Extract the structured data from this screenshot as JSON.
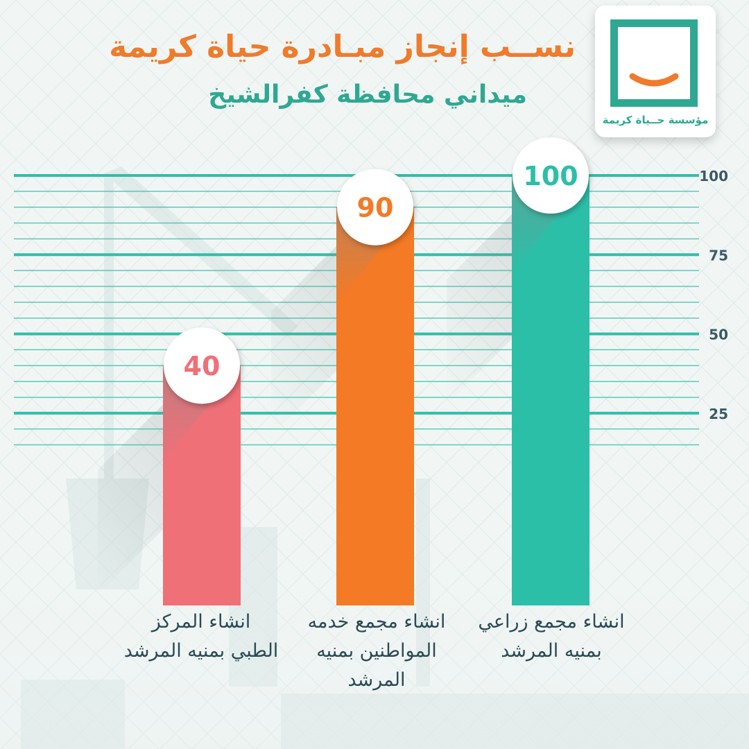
{
  "header": {
    "title": "نســب إنجاز مبـادرة حياة كريمة",
    "subtitle": "ميداني محافظة كفرالشيخ"
  },
  "logo": {
    "text": "مؤسسة حــياة كريمة",
    "icon": "smile-frame-icon"
  },
  "colors": {
    "title": "#ef7b2b",
    "subtitle": "#2fa891",
    "gridline": "#2fbfa9",
    "axis_text": "#3a5a66",
    "label_text": "#2a4a56"
  },
  "chart_data": {
    "type": "bar",
    "categories": [
      "انشاء المركز الطبي بمنيه المرشد",
      "انشاء مجمع خدمه المواطنين بمنيه المرشد",
      "انشاء مجمع زراعي بمنيه المرشد"
    ],
    "values": [
      40,
      90,
      100
    ],
    "value_labels": [
      "40",
      "90",
      "100"
    ],
    "category_lines": [
      [
        "انشاء المركز",
        "الطبي بمنيه المرشد"
      ],
      [
        "انشاء مجمع خدمه",
        "المواطنين بمنيه",
        "المرشد"
      ],
      [
        "انشاء مجمع زراعي",
        "بمنيه المرشد"
      ]
    ],
    "bar_colors": [
      "#f07078",
      "#f47a25",
      "#2cbfa8"
    ],
    "yticks": [
      25,
      50,
      75,
      100
    ],
    "ytick_labels": [
      "25",
      "50",
      "75",
      "100"
    ],
    "ylim": [
      0,
      100
    ],
    "yaxis_position": "right",
    "grid": true
  }
}
